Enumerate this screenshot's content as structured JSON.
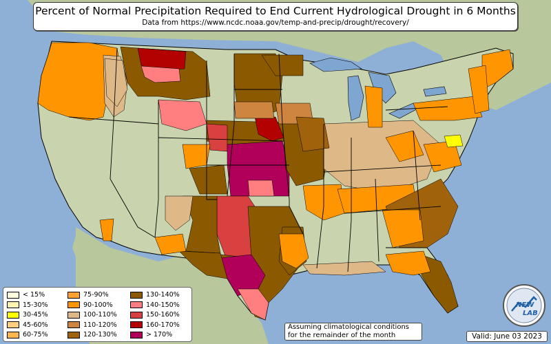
{
  "header": {
    "title": "Percent of Normal Precipitation Required to End Current Hydrological Drought in 6 Months",
    "subtitle": "Data from https://www.ncdc.noaa.gov/temp-and-precip/drought/recovery/"
  },
  "legend": {
    "items": [
      {
        "label": "< 15%",
        "color": "#ffffe0"
      },
      {
        "label": "15-30%",
        "color": "#fff3b0"
      },
      {
        "label": "30-45%",
        "color": "#ffff00"
      },
      {
        "label": "45-60%",
        "color": "#ffd080"
      },
      {
        "label": "60-75%",
        "color": "#ffb74d"
      },
      {
        "label": "75-90%",
        "color": "#ffa030"
      },
      {
        "label": "90-100%",
        "color": "#ff9500"
      },
      {
        "label": "100-110%",
        "color": "#deb887"
      },
      {
        "label": "110-120%",
        "color": "#cd853f"
      },
      {
        "label": "120-130%",
        "color": "#a0620a"
      },
      {
        "label": "130-140%",
        "color": "#8b5a00"
      },
      {
        "label": "140-150%",
        "color": "#ff7f80"
      },
      {
        "label": "150-160%",
        "color": "#d94040"
      },
      {
        "label": "160-170%",
        "color": "#b30000"
      },
      {
        "label": "> 170%",
        "color": "#b0005a"
      }
    ]
  },
  "note": {
    "line1": "Assuming climatological conditions",
    "line2": "for the remainder of the month"
  },
  "valid": "Valid: June 03 2023",
  "logo": {
    "text_top": "NEW",
    "text_bottom": "LAB"
  },
  "colors": {
    "ocean": "#8fb0d6",
    "land": "#c9d3ad",
    "land_neighbors": "#b9c79c",
    "lakes": "#7fa5d1",
    "borders": "#000000"
  }
}
